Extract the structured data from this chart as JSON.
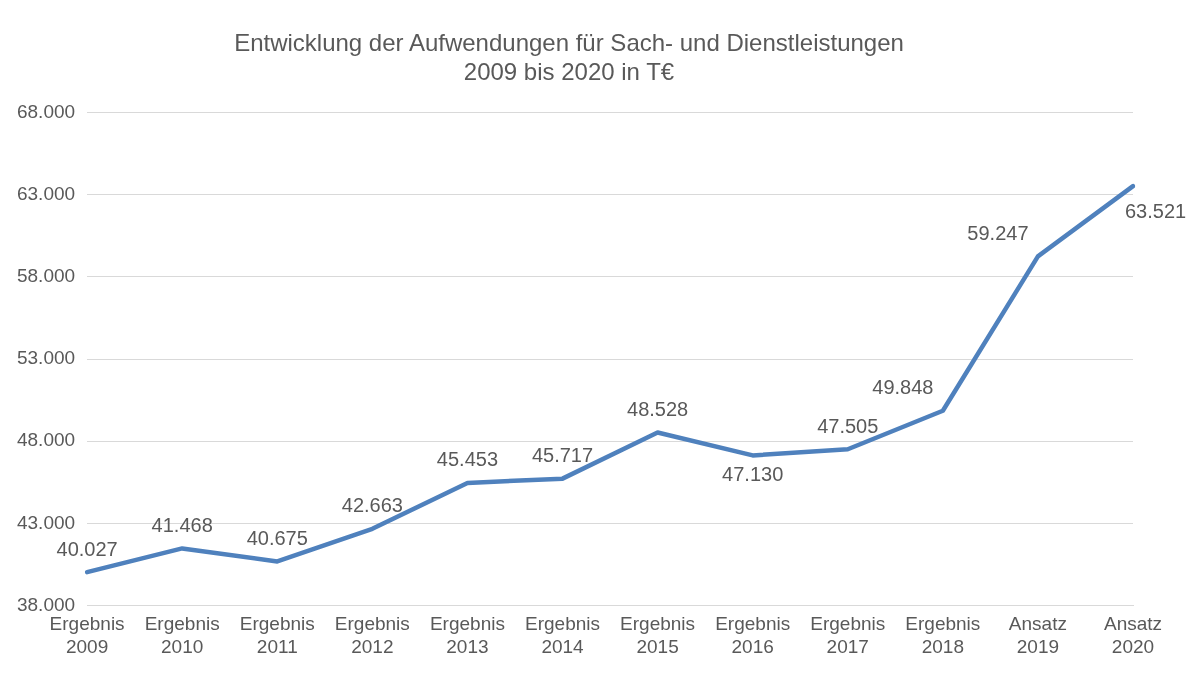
{
  "chart_data": {
    "type": "line",
    "title": "Entwicklung der Aufwendungen für Sach- und Dienstleistungen 2009 bis 2020 in T€",
    "categories": [
      "Ergebnis 2009",
      "Ergebnis 2010",
      "Ergebnis 2011",
      "Ergebnis 2012",
      "Ergebnis 2013",
      "Ergebnis 2014",
      "Ergebnis 2015",
      "Ergebnis 2016",
      "Ergebnis 2017",
      "Ergebnis 2018",
      "Ansatz 2019",
      "Ansatz 2020"
    ],
    "series": [
      {
        "color": "#4f81bd",
        "values": [
          40027,
          41468,
          40675,
          42663,
          45453,
          45717,
          48528,
          47130,
          47505,
          49848,
          59247,
          63521
        ],
        "value_labels": [
          "40.027",
          "41.468",
          "40.675",
          "42.663",
          "45.453",
          "45.717",
          "48.528",
          "47.130",
          "47.505",
          "49.848",
          "59.247",
          "63.521"
        ]
      }
    ],
    "ylim": [
      38000,
      68000
    ],
    "yticks": [
      {
        "value": 38000,
        "label": "38.000"
      },
      {
        "value": 43000,
        "label": "43.000"
      },
      {
        "value": 48000,
        "label": "48.000"
      },
      {
        "value": 53000,
        "label": "53.000"
      },
      {
        "value": 58000,
        "label": "58.000"
      },
      {
        "value": 63000,
        "label": "63.000"
      },
      {
        "value": 68000,
        "label": "68.000"
      }
    ],
    "grid": "y",
    "marker": "none",
    "line_style": "solid",
    "legend": false
  }
}
